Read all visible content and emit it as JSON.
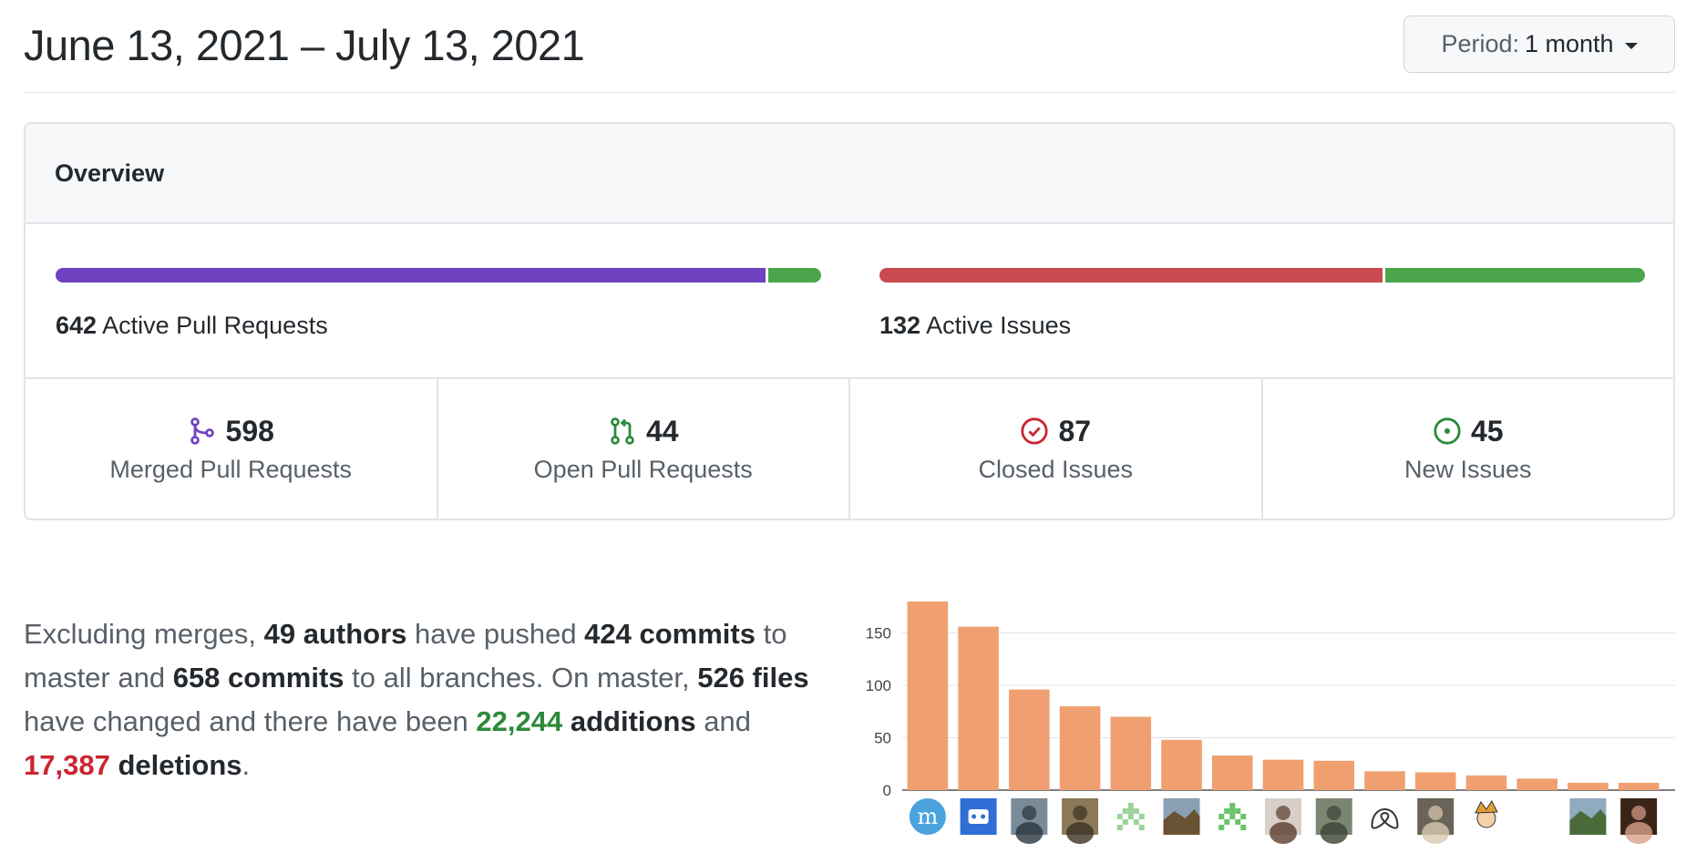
{
  "header": {
    "date_range": "June 13, 2021 – July 13, 2021",
    "period_label": "Period:",
    "period_value": "1 month"
  },
  "overview": {
    "title": "Overview",
    "pull_requests_bar": {
      "count": "642",
      "label": "Active Pull Requests",
      "merged_fraction": 0.931,
      "colors": {
        "merged": "#6f42c1",
        "open": "#4ca54d"
      }
    },
    "issues_bar": {
      "count": "132",
      "label": "Active Issues",
      "closed_fraction": 0.659,
      "colors": {
        "closed": "#cb4a4f",
        "new": "#4ca54d"
      }
    },
    "stats": [
      {
        "icon": "merge-icon",
        "value": "598",
        "label": "Merged Pull Requests",
        "color": "#6f42c1"
      },
      {
        "icon": "pull-request-icon",
        "value": "44",
        "label": "Open Pull Requests",
        "color": "#2c8a3a"
      },
      {
        "icon": "issue-closed-icon",
        "value": "87",
        "label": "Closed Issues",
        "color": "#cb2431"
      },
      {
        "icon": "issue-opened-icon",
        "value": "45",
        "label": "New Issues",
        "color": "#2c8a3a"
      }
    ]
  },
  "summary": {
    "p1": "Excluding merges, ",
    "authors": "49 authors",
    "p2": " have pushed ",
    "commits_master": "424 commits",
    "p3": " to master and ",
    "commits_all": "658 commits",
    "p4": " to all branches. On master, ",
    "files": "526 files",
    "p5": " have changed and there have been ",
    "additions": "22,244",
    "additions_word": "additions",
    "p6": " and ",
    "deletions": "17,387",
    "deletions_word": "deletions",
    "p7": "."
  },
  "chart_data": {
    "type": "bar",
    "title": "",
    "xlabel": "",
    "ylabel": "",
    "ylim": [
      0,
      180
    ],
    "yticks": [
      "0",
      "50",
      "100",
      "150"
    ],
    "bar_color": "#f0a070",
    "categories": [
      "contributor-1",
      "contributor-2",
      "contributor-3",
      "contributor-4",
      "contributor-5",
      "contributor-6",
      "contributor-7",
      "contributor-8",
      "contributor-9",
      "contributor-10",
      "contributor-11",
      "contributor-12",
      "contributor-13",
      "contributor-14",
      "contributor-15"
    ],
    "values": [
      180,
      156,
      96,
      80,
      70,
      48,
      33,
      29,
      28,
      18,
      17,
      14,
      11,
      7,
      7
    ],
    "avatars": [
      {
        "bg": "#4aa3df",
        "fg": "#ffffff",
        "glyph": "m"
      },
      {
        "bg": "#2f6fd6",
        "fg": "#ffffff",
        "glyph": "bot"
      },
      {
        "bg": "#7a8a96",
        "fg": "#2b3640",
        "glyph": "person"
      },
      {
        "bg": "#8a7a5a",
        "fg": "#3c3122",
        "glyph": "person"
      },
      {
        "bg": "#ffffff",
        "fg": "#9bd39b",
        "glyph": "pixel"
      },
      {
        "bg": "#8aa0b4",
        "fg": "#6a5234",
        "glyph": "landscape"
      },
      {
        "bg": "#ffffff",
        "fg": "#6cc36c",
        "glyph": "pixel"
      },
      {
        "bg": "#d8cfc8",
        "fg": "#5a3c2c",
        "glyph": "person"
      },
      {
        "bg": "#7a8672",
        "fg": "#3c4234",
        "glyph": "person"
      },
      {
        "bg": "#ffffff",
        "fg": "#333333",
        "glyph": "knot"
      },
      {
        "bg": "#6a6458",
        "fg": "#d8c8b0",
        "glyph": "person"
      },
      {
        "bg": "#ffffff",
        "fg": "#e0a030",
        "glyph": "cartoon"
      },
      {
        "bg": "#ffffff",
        "fg": "#ffffff",
        "glyph": "blank"
      },
      {
        "bg": "#90aac0",
        "fg": "#4a6a3a",
        "glyph": "landscape"
      },
      {
        "bg": "#3a2418",
        "fg": "#d8a088",
        "glyph": "person"
      }
    ]
  }
}
